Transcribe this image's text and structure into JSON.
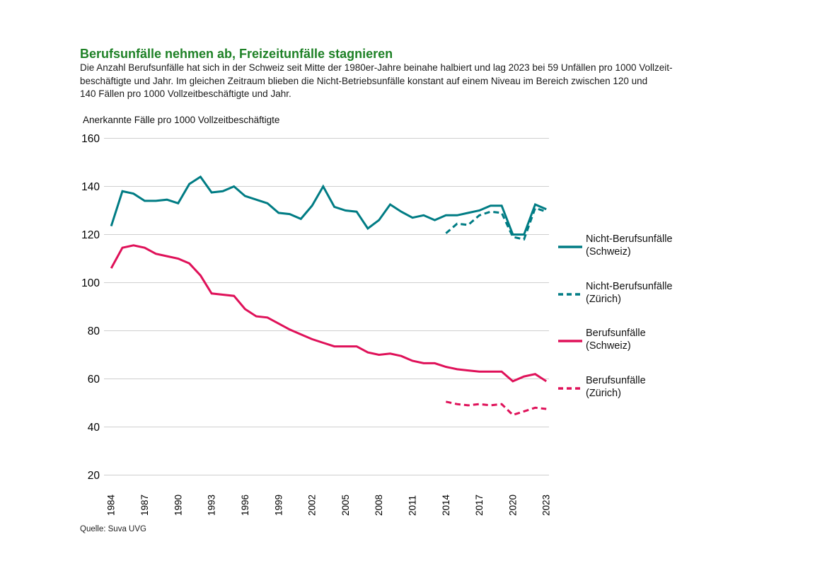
{
  "page": {
    "title": "Berufsunfälle nehmen ab, Freizeitunfälle stagnieren",
    "title_color": "#1e8126",
    "source": "Quelle: Suva UVG"
  },
  "intro": {
    "lines": [
      "Die Anzahl Berufsunfälle hat sich in der Schweiz seit Mitte der 1980er-Jahre beinahe halbiert und lag 2023 bei 59 Unfällen pro 1000 Vollzeit-",
      "beschäftigte und Jahr. Im gleichen Zeitraum blieben die Nicht-Betriebsunfälle konstant auf einem Niveau im Bereich zwischen 120 und",
      "140 Fällen pro 1000 Vollzeitbeschäftigte und Jahr."
    ]
  },
  "chart_data": {
    "type": "line",
    "y_axis_label": "Anerkannte Fälle pro 1000 Vollzeitbeschäftigte",
    "ylim": [
      20,
      160
    ],
    "x_domain": [
      1984,
      2023
    ],
    "y_ticks": [
      160,
      140,
      120,
      100,
      80,
      60,
      40,
      20
    ],
    "x_ticks": [
      1984,
      1987,
      1990,
      1993,
      1996,
      1999,
      2002,
      2005,
      2008,
      2011,
      2014,
      2017,
      2020,
      2023
    ],
    "grid": "horizontal",
    "legend_position": "right",
    "colors": {
      "teal": "#007c84",
      "pink": "#df1159",
      "gridline": "#cfcfcf"
    },
    "series": [
      {
        "id": "nicht-berufsunfaelle-schweiz",
        "name": "Nicht-Berufsunfälle (Schweiz)",
        "color": "#007c84",
        "style": "solid",
        "start_year": 1984,
        "values": [
          123.5,
          138,
          137,
          134,
          134,
          134.5,
          133,
          141,
          144,
          137.5,
          138,
          140,
          136,
          134.5,
          133,
          129,
          128.5,
          126.5,
          132,
          140,
          131.5,
          130,
          129.5,
          122.5,
          126,
          132.5,
          129.5,
          127,
          128,
          126,
          128,
          128,
          129,
          130,
          132,
          132,
          120,
          120,
          132.5,
          130.5
        ]
      },
      {
        "id": "berufsunfaelle-schweiz",
        "name": "Berufsunfälle (Schweiz)",
        "color": "#df1159",
        "style": "solid",
        "start_year": 1984,
        "values": [
          106,
          114.5,
          115.5,
          114.5,
          112,
          111,
          110,
          108,
          103,
          95.5,
          95,
          94.5,
          89,
          86,
          85.5,
          83,
          80.5,
          78.5,
          76.5,
          75,
          73.5,
          73.5,
          73.5,
          71,
          70,
          70.5,
          69.5,
          67.5,
          66.5,
          66.5,
          65,
          64,
          63.5,
          63,
          63,
          63,
          59,
          61,
          62,
          59
        ]
      },
      {
        "id": "nicht-berufsunfaelle-zuerich",
        "name": "Nicht-Berufsunfälle (Zürich)",
        "color": "#007c84",
        "style": "dashed",
        "start_year": 2014,
        "values": [
          120.5,
          124.5,
          124,
          128,
          129.5,
          129,
          119,
          118,
          131,
          129.5
        ]
      },
      {
        "id": "berufsunfaelle-zuerich",
        "name": "Berufsunfälle (Zürich)",
        "color": "#df1159",
        "style": "dashed",
        "start_year": 2014,
        "values": [
          50.5,
          49.5,
          49,
          49.5,
          49,
          49.5,
          45,
          46.5,
          48,
          47.5
        ]
      }
    ],
    "legend": [
      {
        "label": "Nicht-Berufsunfälle",
        "sublabel": "(Schweiz)",
        "color": "#007c84",
        "dashed": false
      },
      {
        "label": "Nicht-Berufsunfälle",
        "sublabel": "(Zürich)",
        "color": "#007c84",
        "dashed": true
      },
      {
        "label": "Berufsunfälle",
        "sublabel": "(Schweiz)",
        "color": "#df1159",
        "dashed": false
      },
      {
        "label": "Berufsunfälle",
        "sublabel": "(Zürich)",
        "color": "#df1159",
        "dashed": true
      }
    ]
  }
}
